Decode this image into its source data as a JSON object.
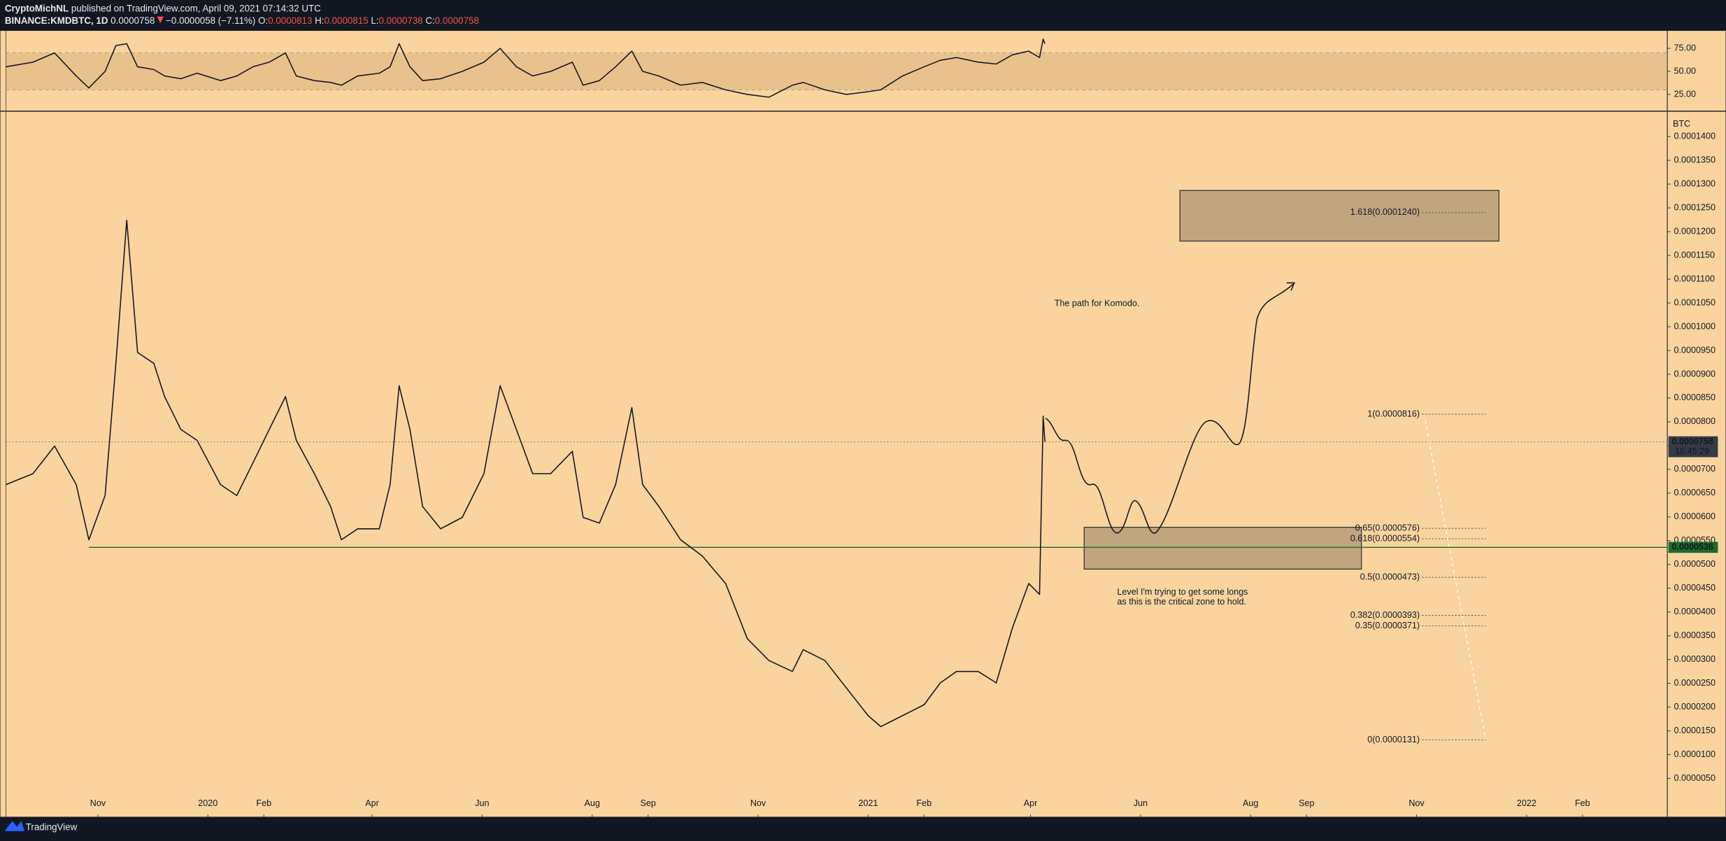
{
  "header": {
    "author": "CryptoMichNL",
    "published": "published on TradingView.com, April 09, 2021 07:14:32 UTC",
    "symbol": "BINANCE:KMDBTC, 1D",
    "last": "0.0000758",
    "change": "−0.0000058 (−7.11%)",
    "ohlc": [
      {
        "key": "O:",
        "value": "0.0000813"
      },
      {
        "key": "H:",
        "value": "0.0000815"
      },
      {
        "key": "L:",
        "value": "0.0000738"
      },
      {
        "key": "C:",
        "value": "0.0000758"
      }
    ]
  },
  "footer": {
    "brand": "TradingView"
  },
  "chart_data": [
    {
      "type": "line",
      "color": "#131722",
      "axis_label": "BTC",
      "x": [
        -51,
        -36,
        -24,
        -12,
        -5,
        4,
        10,
        16,
        22,
        31,
        37,
        46,
        55,
        68,
        77,
        86,
        95,
        104,
        110,
        120,
        129,
        135,
        144,
        156,
        162,
        167,
        173,
        180,
        190,
        202,
        214,
        223,
        232,
        241,
        251,
        263,
        269,
        278,
        287,
        296,
        302,
        311,
        323,
        335,
        348,
        360,
        372,
        385,
        391,
        403,
        415,
        427,
        434,
        446,
        458,
        467,
        476,
        488,
        498,
        507,
        516,
        522,
        524,
        525
      ],
      "values": [
        6.68e-05,
        6.91e-05,
        7.49e-05,
        6.68e-05,
        5.52e-05,
        6.45e-05,
        9.23e-05,
        0.0001224,
        9.46e-05,
        9.23e-05,
        8.53e-05,
        7.84e-05,
        7.61e-05,
        6.68e-05,
        6.45e-05,
        7.14e-05,
        7.84e-05,
        8.53e-05,
        7.61e-05,
        6.91e-05,
        6.22e-05,
        5.52e-05,
        5.75e-05,
        5.75e-05,
        6.68e-05,
        8.76e-05,
        7.84e-05,
        6.22e-05,
        5.75e-05,
        5.99e-05,
        6.91e-05,
        8.76e-05,
        7.84e-05,
        6.91e-05,
        6.91e-05,
        7.38e-05,
        5.99e-05,
        5.87e-05,
        6.68e-05,
        8.3e-05,
        6.68e-05,
        6.22e-05,
        5.52e-05,
        5.18e-05,
        4.6e-05,
        3.44e-05,
        2.98e-05,
        2.75e-05,
        3.21e-05,
        2.98e-05,
        2.4e-05,
        1.82e-05,
        1.59e-05,
        1.82e-05,
        2.05e-05,
        2.51e-05,
        2.75e-05,
        2.75e-05,
        2.51e-05,
        3.67e-05,
        4.6e-05,
        4.37e-05,
        8.12e-05,
        7.58e-05
      ],
      "xlim": [
        -51,
        870
      ],
      "xticks": [
        {
          "value": 0,
          "label": "Nov"
        },
        {
          "value": 61,
          "label": "2020"
        },
        {
          "value": 92,
          "label": "Feb"
        },
        {
          "value": 152,
          "label": "Apr"
        },
        {
          "value": 213,
          "label": "Jun"
        },
        {
          "value": 274,
          "label": "Aug"
        },
        {
          "value": 305,
          "label": "Sep"
        },
        {
          "value": 366,
          "label": "Nov"
        },
        {
          "value": 427,
          "label": "2021"
        },
        {
          "value": 458,
          "label": "Feb"
        },
        {
          "value": 517,
          "label": "Apr"
        },
        {
          "value": 578,
          "label": "Jun"
        },
        {
          "value": 639,
          "label": "Aug"
        },
        {
          "value": 670,
          "label": "Sep"
        },
        {
          "value": 731,
          "label": "Nov"
        },
        {
          "value": 792,
          "label": "2022"
        },
        {
          "value": 823,
          "label": "Feb"
        }
      ],
      "ylim": [
        -2.6e-06,
        0.0001451
      ],
      "yticks": [
        {
          "value": 5e-06,
          "label": "0.0000050"
        },
        {
          "value": 1e-05,
          "label": "0.0000100"
        },
        {
          "value": 1.5e-05,
          "label": "0.0000150"
        },
        {
          "value": 2e-05,
          "label": "0.0000200"
        },
        {
          "value": 2.5e-05,
          "label": "0.0000250"
        },
        {
          "value": 3e-05,
          "label": "0.0000300"
        },
        {
          "value": 3.5e-05,
          "label": "0.0000350"
        },
        {
          "value": 4e-05,
          "label": "0.0000400"
        },
        {
          "value": 4.5e-05,
          "label": "0.0000450"
        },
        {
          "value": 5e-05,
          "label": "0.0000500"
        },
        {
          "value": 5.5e-05,
          "label": "0.0000550"
        },
        {
          "value": 6e-05,
          "label": "0.0000600"
        },
        {
          "value": 6.5e-05,
          "label": "0.0000650"
        },
        {
          "value": 7e-05,
          "label": "0.0000700"
        },
        {
          "value": 7.5e-05,
          "label": "0.0000750"
        },
        {
          "value": 8e-05,
          "label": "0.0000800"
        },
        {
          "value": 8.5e-05,
          "label": "0.0000850"
        },
        {
          "value": 9e-05,
          "label": "0.0000900"
        },
        {
          "value": 9.5e-05,
          "label": "0.0000950"
        },
        {
          "value": 0.0001,
          "label": "0.0001000"
        },
        {
          "value": 0.000105,
          "label": "0.0001050"
        },
        {
          "value": 0.00011,
          "label": "0.0001100"
        },
        {
          "value": 0.000115,
          "label": "0.0001150"
        },
        {
          "value": 0.00012,
          "label": "0.0001200"
        },
        {
          "value": 0.000125,
          "label": "0.0001250"
        },
        {
          "value": 0.00013,
          "label": "0.0001300"
        },
        {
          "value": 0.000135,
          "label": "0.0001350"
        },
        {
          "value": 0.00014,
          "label": "0.0001400"
        }
      ],
      "fib_levels": [
        {
          "value": 0.000124,
          "label": "1.618(0.0001240)"
        },
        {
          "value": 8.16e-05,
          "label": "1(0.0000816)"
        },
        {
          "value": 5.76e-05,
          "label": "0.65(0.0000576)"
        },
        {
          "value": 5.54e-05,
          "label": "0.618(0.0000554)"
        },
        {
          "value": 4.73e-05,
          "label": "0.5(0.0000473)"
        },
        {
          "value": 3.93e-05,
          "label": "0.382(0.0000393)"
        },
        {
          "value": 3.71e-05,
          "label": "0.35(0.0000371)"
        },
        {
          "value": 1.31e-05,
          "label": "0(0.0000131)"
        }
      ],
      "last_price": {
        "value": 7.58e-05,
        "label": "0.0000758",
        "countdown": "16:45:29"
      },
      "support": {
        "value": 5.36e-05,
        "label": "0.0000536"
      },
      "notes": [
        "The path for Komodo.",
        "Level I'm trying to get some longs",
        "as this is the critical zone to hold."
      ]
    },
    {
      "type": "line",
      "color": "#131722",
      "x": [
        -51,
        -36,
        -24,
        -12,
        -5,
        4,
        10,
        16,
        22,
        31,
        37,
        46,
        55,
        68,
        77,
        86,
        95,
        104,
        110,
        120,
        129,
        135,
        144,
        156,
        162,
        167,
        173,
        180,
        190,
        202,
        214,
        223,
        232,
        241,
        251,
        263,
        269,
        278,
        287,
        296,
        302,
        311,
        323,
        335,
        348,
        360,
        372,
        385,
        391,
        403,
        415,
        427,
        434,
        446,
        458,
        467,
        476,
        488,
        498,
        507,
        516,
        522,
        524,
        525
      ],
      "values": [
        55,
        60,
        70,
        45,
        32,
        50,
        78,
        80,
        55,
        52,
        45,
        42,
        48,
        40,
        45,
        55,
        60,
        70,
        45,
        40,
        38,
        35,
        45,
        48,
        55,
        80,
        55,
        40,
        42,
        50,
        60,
        75,
        55,
        45,
        50,
        60,
        35,
        40,
        55,
        72,
        50,
        45,
        35,
        38,
        30,
        25,
        22,
        35,
        38,
        30,
        25,
        28,
        30,
        45,
        55,
        62,
        65,
        60,
        58,
        68,
        72,
        65,
        85,
        80
      ],
      "xlim": [
        -51,
        870
      ],
      "ylim": [
        8,
        94
      ],
      "band": [
        30,
        70
      ],
      "yticks": [
        {
          "value": 25,
          "label": "25.00"
        },
        {
          "value": 50,
          "label": "50.00"
        },
        {
          "value": 75,
          "label": "75.00"
        }
      ]
    }
  ]
}
